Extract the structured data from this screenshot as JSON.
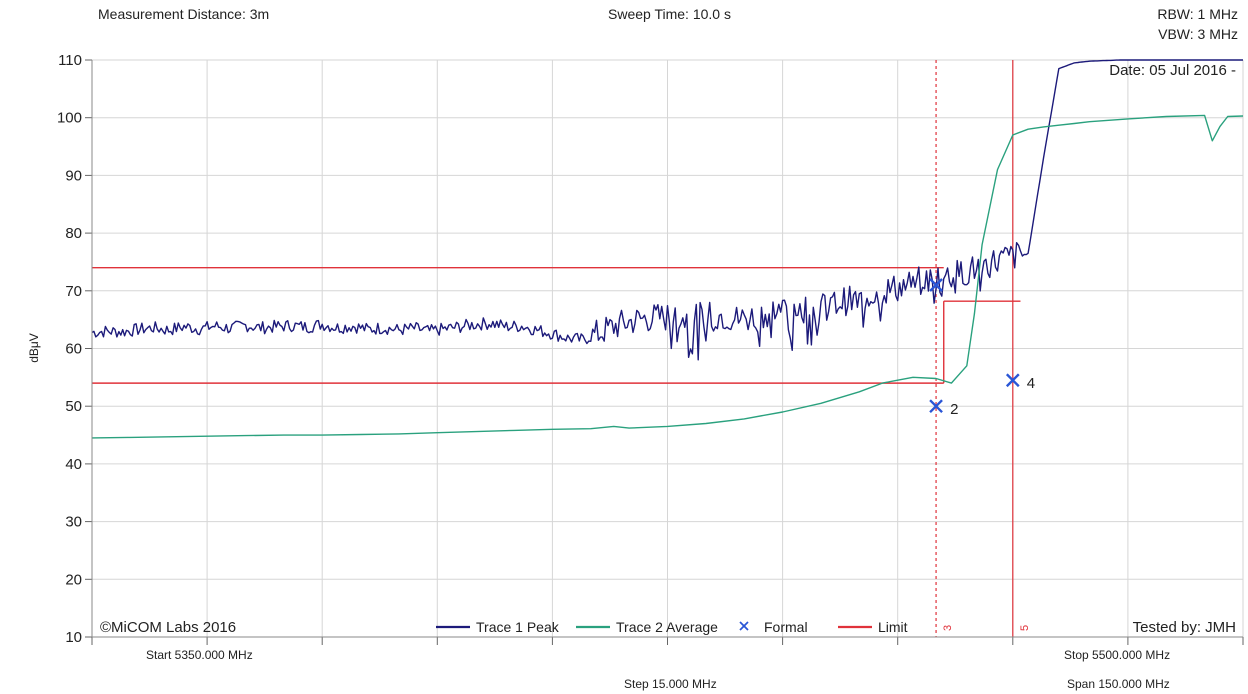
{
  "header": {
    "measurement_distance": "Measurement Distance: 3m",
    "sweep_time": "Sweep Time: 10.0 s",
    "rbw": "RBW: 1 MHz",
    "vbw": "VBW: 3 MHz",
    "date": "Date: 05 Jul 2016 -"
  },
  "footer": {
    "copyright": "©MiCOM Labs 2016",
    "tested_by": "Tested by: JMH",
    "start": "Start 5350.000 MHz",
    "stop": "Stop 5500.000 MHz",
    "step": "Step 15.000 MHz",
    "span": "Span 150.000 MHz"
  },
  "colors": {
    "trace1": "#1c1a7a",
    "trace2": "#2aa17e",
    "marker": "#2a56d6",
    "limit": "#e0323a",
    "grid": "#d6d6d6"
  },
  "chart_data": {
    "type": "line",
    "xlim": [
      5350,
      5500
    ],
    "ylim": [
      10,
      110
    ],
    "ylabel": "dBμV",
    "yticks": [
      10,
      20,
      30,
      40,
      50,
      60,
      70,
      80,
      90,
      100,
      110
    ],
    "grid": true,
    "legend_position": "bottom-center",
    "legend": [
      {
        "label": "Trace 1 Peak",
        "kind": "line",
        "color": "#1c1a7a"
      },
      {
        "label": "Trace 2 Average",
        "kind": "line",
        "color": "#2aa17e"
      },
      {
        "label": "Formal",
        "kind": "x",
        "color": "#2a56d6"
      },
      {
        "label": "Limit",
        "kind": "line",
        "color": "#e0323a"
      }
    ],
    "series": [
      {
        "name": "Trace 1 Peak",
        "color": "#1c1a7a",
        "x": [
          5350,
          5352,
          5354,
          5356,
          5358,
          5360,
          5362,
          5364,
          5366,
          5368,
          5370,
          5372,
          5374,
          5376,
          5378,
          5380,
          5382,
          5384,
          5386,
          5388,
          5390,
          5392,
          5394,
          5396,
          5398,
          5400,
          5402,
          5404,
          5406,
          5408,
          5410,
          5412,
          5414,
          5416,
          5418,
          5420,
          5422,
          5424,
          5426,
          5428,
          5430,
          5432,
          5434,
          5436,
          5438,
          5440,
          5442,
          5444,
          5446,
          5448,
          5450,
          5452,
          5454,
          5456,
          5458,
          5460,
          5462,
          5464,
          5466,
          5468,
          5470,
          5472,
          5474,
          5476,
          5478,
          5480,
          5482,
          5484,
          5486,
          5488,
          5490,
          5492,
          5494,
          5496,
          5498,
          5500
        ],
        "y": [
          62.8,
          63.0,
          62.9,
          63.3,
          63.6,
          63.2,
          63.8,
          63.4,
          63.9,
          63.5,
          64.0,
          63.6,
          63.8,
          64.0,
          63.7,
          64.2,
          63.6,
          63.9,
          63.3,
          63.6,
          63.2,
          63.5,
          63.0,
          63.4,
          63.8,
          64.2,
          64.4,
          63.8,
          63.9,
          63.2,
          62.6,
          61.8,
          61.5,
          62.6,
          63.8,
          64.6,
          65.2,
          65.4,
          65.4,
          65.0,
          65.6,
          65.8,
          65.1,
          65.4,
          66.3,
          66.8,
          67.1,
          66.8,
          67.3,
          68.3,
          68.2,
          69.8,
          70.2,
          70.9,
          71.7,
          72.2,
          72.7,
          73.3,
          74.3,
          75.3,
          76.0,
          76.5,
          93.0,
          108.5,
          109.5,
          109.8,
          109.9,
          110.0,
          110.0,
          110.0,
          110.0,
          110.0,
          110.0,
          110.0,
          110.0,
          110.0
        ]
      },
      {
        "name": "Trace 2 Average",
        "color": "#2aa17e",
        "x": [
          5350,
          5355,
          5360,
          5365,
          5370,
          5375,
          5380,
          5385,
          5390,
          5395,
          5400,
          5405,
          5410,
          5415,
          5418,
          5420,
          5425,
          5430,
          5435,
          5440,
          5445,
          5450,
          5453,
          5455,
          5457,
          5460,
          5462,
          5464,
          5465,
          5466,
          5468,
          5470,
          5472,
          5474,
          5476,
          5478,
          5480,
          5485,
          5490,
          5495,
          5496,
          5497,
          5498,
          5500
        ],
        "y": [
          44.5,
          44.6,
          44.7,
          44.8,
          44.9,
          45.0,
          45.0,
          45.1,
          45.2,
          45.4,
          45.6,
          45.8,
          46.0,
          46.1,
          46.5,
          46.2,
          46.5,
          47.0,
          47.8,
          49.0,
          50.5,
          52.5,
          54.0,
          54.5,
          55.0,
          54.8,
          54.0,
          57.0,
          66.0,
          78.0,
          91.0,
          97.0,
          98.0,
          98.4,
          98.7,
          99.0,
          99.3,
          99.8,
          100.2,
          100.4,
          96.0,
          98.5,
          100.2,
          100.3
        ]
      }
    ],
    "limit_lines": [
      {
        "x": [
          5350,
          5461
        ],
        "y": [
          74,
          74
        ]
      },
      {
        "x": [
          5350,
          5461
        ],
        "y": [
          54,
          54
        ]
      },
      {
        "x": [
          5461,
          5461
        ],
        "y": [
          54,
          68.2
        ]
      },
      {
        "x": [
          5461,
          5471
        ],
        "y": [
          68.2,
          68.2
        ]
      }
    ],
    "vertical_markers": [
      {
        "label": "3",
        "x": 5460,
        "style": "dashed"
      },
      {
        "label": "5",
        "x": 5470,
        "style": "solid"
      }
    ],
    "markers": [
      {
        "label": "",
        "x": 5460,
        "y": 71.0
      },
      {
        "label": "2",
        "x": 5460,
        "y": 50.0
      },
      {
        "label": "4",
        "x": 5470,
        "y": 54.5
      }
    ]
  }
}
